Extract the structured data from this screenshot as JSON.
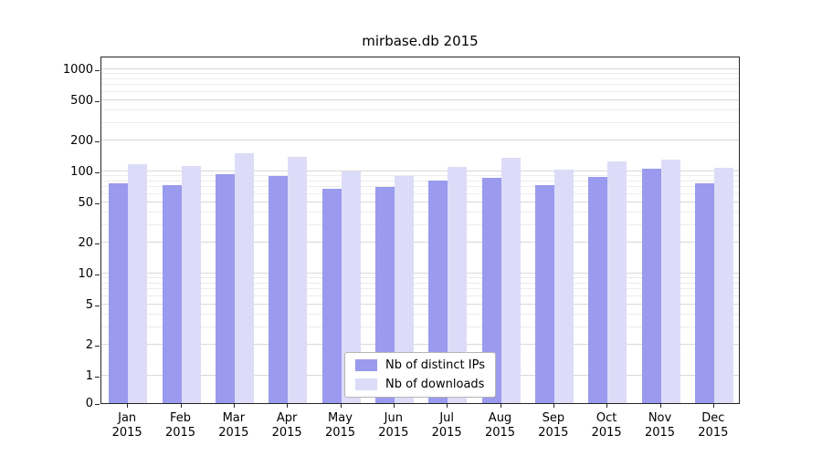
{
  "chart_data": {
    "type": "bar",
    "title": "mirbase.db 2015",
    "categories": [
      "Jan 2015",
      "Feb 2015",
      "Mar 2015",
      "Apr 2015",
      "May 2015",
      "Jun 2015",
      "Jul 2015",
      "Aug 2015",
      "Sep 2015",
      "Oct 2015",
      "Nov 2015",
      "Dec 2015"
    ],
    "series": [
      {
        "name": "Nb of distinct IPs",
        "color": "#9a9aee",
        "values": [
          76,
          73,
          95,
          91,
          68,
          70,
          82,
          86,
          73,
          89,
          107,
          76
        ]
      },
      {
        "name": "Nb of downloads",
        "color": "#dcdcf8",
        "values": [
          118,
          113,
          150,
          140,
          100,
          90,
          110,
          135,
          105,
          125,
          131,
          108
        ]
      }
    ],
    "yscale": "log",
    "yticks": [
      0,
      1,
      2,
      5,
      10,
      20,
      50,
      100,
      200,
      500,
      1000
    ],
    "ylim": [
      0,
      1500
    ],
    "xlabel": "",
    "ylabel": "",
    "grid": true,
    "legend_position": "lower center"
  },
  "colors": {
    "background": "#ffffff",
    "spine": "#262626",
    "grid_major": "#d9d9d9",
    "grid_minor": "#ececec",
    "tick": "#262626",
    "legend_border": "#b5b5b5"
  }
}
